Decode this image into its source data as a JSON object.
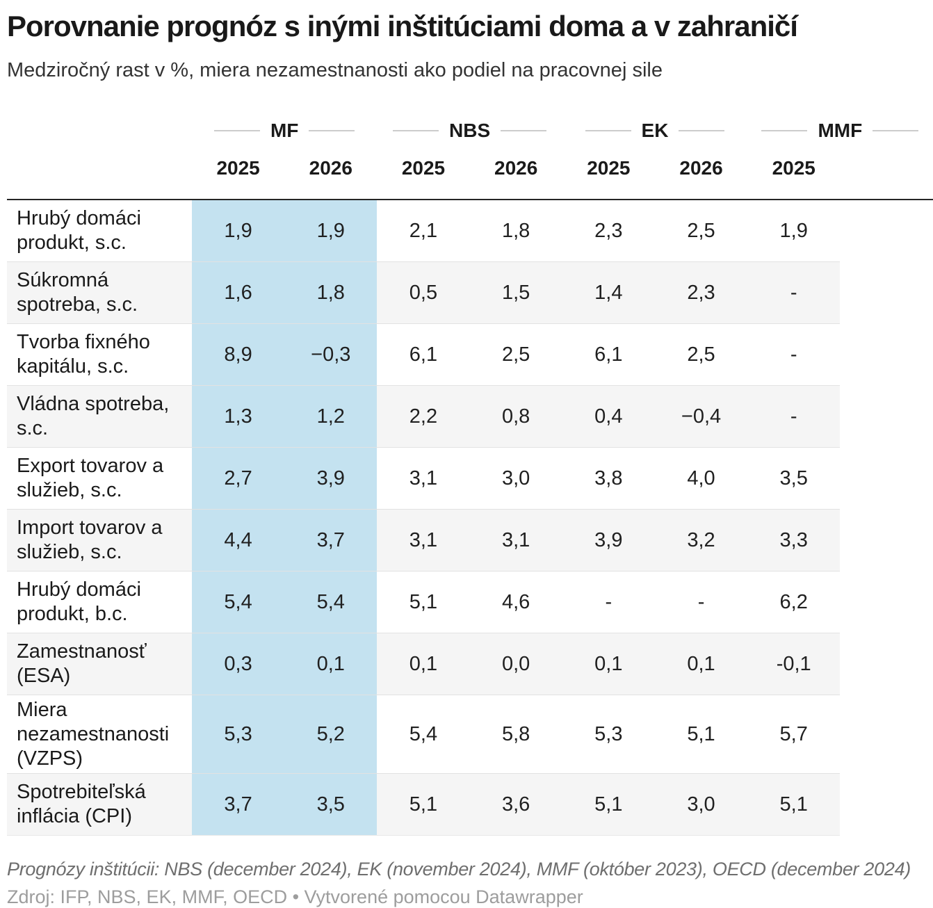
{
  "chart_data": {
    "type": "table",
    "title": "Porovnanie prognóz s inými inštitúciami doma a v zahraničí",
    "subtitle": "Medziročný rast v %, miera nezamestnanosti ako podiel na pracovnej sile",
    "column_groups": [
      "MF",
      "NBS",
      "EK",
      "MMF"
    ],
    "year_headers": [
      "2025",
      "2026",
      "2025",
      "2026",
      "2025",
      "2026",
      "2025"
    ],
    "highlight": {
      "columns": [
        0,
        1
      ],
      "color": "#c4e2f0"
    },
    "stripe_color": "#f5f5f5",
    "rows": [
      {
        "label": "Hrubý domáci produkt, s.c.",
        "values": [
          "1,9",
          "1,9",
          "2,1",
          "1,8",
          "2,3",
          "2,5",
          "1,9"
        ]
      },
      {
        "label": "Súkromná spotreba, s.c.",
        "values": [
          "1,6",
          "1,8",
          "0,5",
          "1,5",
          "1,4",
          "2,3",
          "-"
        ]
      },
      {
        "label": "Tvorba fixného kapitálu, s.c.",
        "values": [
          "8,9",
          "−0,3",
          "6,1",
          "2,5",
          "6,1",
          "2,5",
          "-"
        ]
      },
      {
        "label": "Vládna spotreba, s.c.",
        "values": [
          "1,3",
          "1,2",
          "2,2",
          "0,8",
          "0,4",
          "−0,4",
          "-"
        ]
      },
      {
        "label": "Export tovarov a služieb, s.c.",
        "values": [
          "2,7",
          "3,9",
          "3,1",
          "3,0",
          "3,8",
          "4,0",
          "3,5"
        ]
      },
      {
        "label": "Import tovarov a služieb, s.c.",
        "values": [
          "4,4",
          "3,7",
          "3,1",
          "3,1",
          "3,9",
          "3,2",
          "3,3"
        ]
      },
      {
        "label": "Hrubý domáci produkt, b.c.",
        "values": [
          "5,4",
          "5,4",
          "5,1",
          "4,6",
          "-",
          "-",
          "6,2"
        ]
      },
      {
        "label": "Zamestnanosť (ESA)",
        "values": [
          "0,3",
          "0,1",
          "0,1",
          "0,0",
          "0,1",
          "0,1",
          "-0,1"
        ]
      },
      {
        "label": "Miera nezamestnanosti (VZPS)",
        "values": [
          "5,3",
          "5,2",
          "5,4",
          "5,8",
          "5,3",
          "5,1",
          "5,7"
        ]
      },
      {
        "label": "Spotrebiteľská inflácia (CPI)",
        "values": [
          "3,7",
          "3,5",
          "5,1",
          "3,6",
          "5,1",
          "3,0",
          "5,1"
        ]
      }
    ],
    "notes": "Prognózy inštitúcii: NBS (december 2024), EK (november 2024), MMF (október 2023), OECD (december 2024)",
    "source": "Zdroj: IFP, NBS, EK, MMF, OECD • Vytvorené pomocou Datawrapper"
  }
}
